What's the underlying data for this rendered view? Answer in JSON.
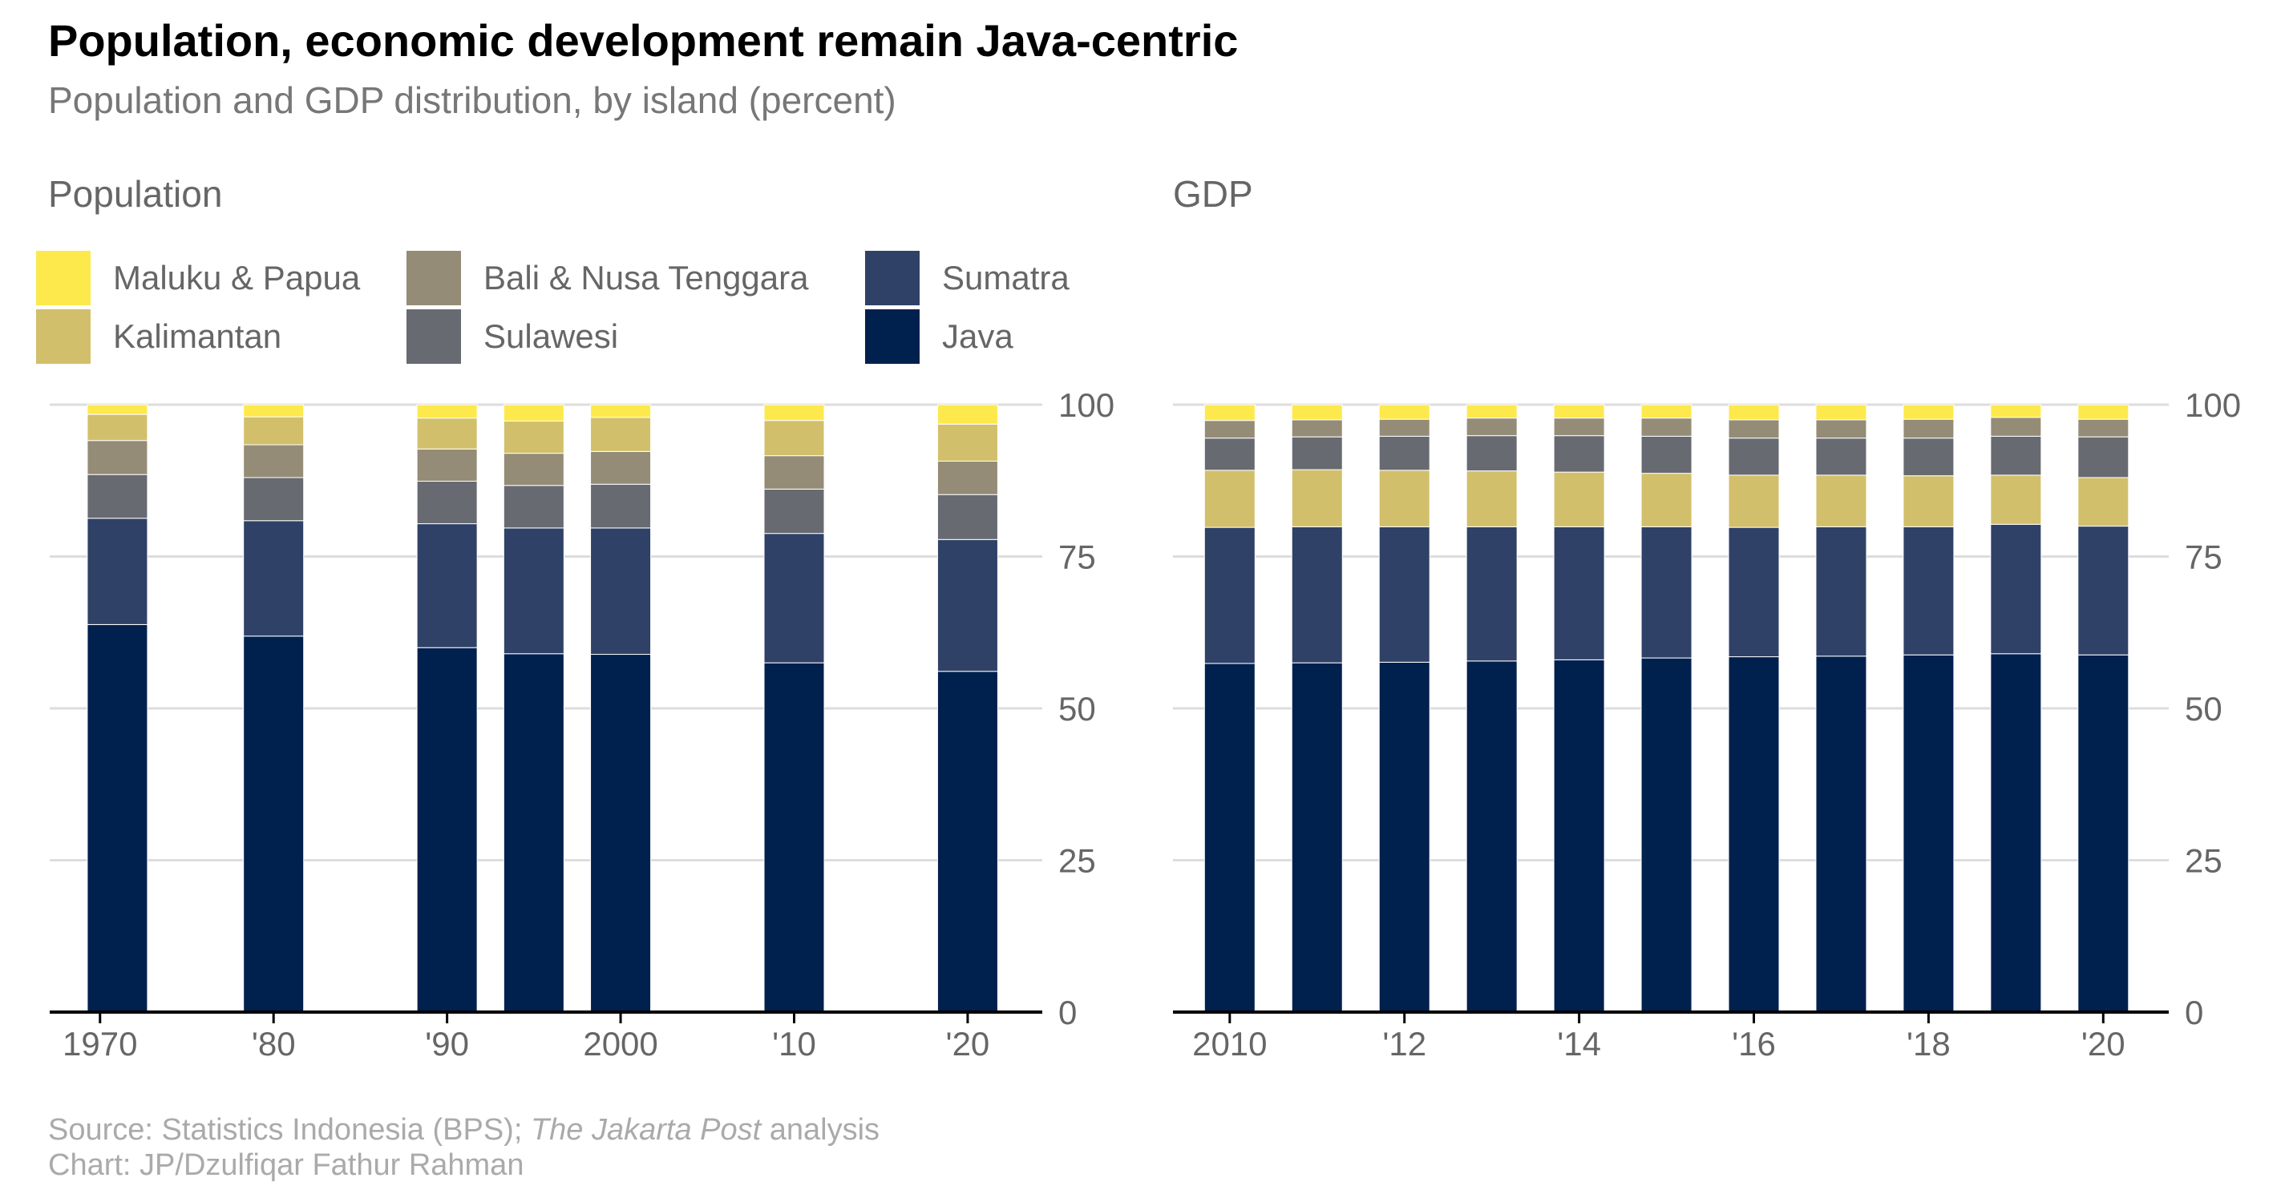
{
  "title": "Population, economic development remain Java-centric",
  "subtitle": "Population and GDP distribution, by island (percent)",
  "source": {
    "prefix": "Source: Statistics Indonesia (BPS); ",
    "italic": "The Jakarta Post",
    "suffix": " analysis",
    "line2": "Chart: JP/Dzulfiqar Fathur Rahman"
  },
  "legend": [
    {
      "name": "Maluku & Papua",
      "color": "#fde94c"
    },
    {
      "name": "Bali & Nusa Tenggara",
      "color": "#948c76"
    },
    {
      "name": "Sumatra",
      "color": "#2f4167"
    },
    {
      "name": "Kalimantan",
      "color": "#d2bf6b"
    },
    {
      "name": "Sulawesi",
      "color": "#686a72"
    },
    {
      "name": "Java",
      "color": "#00204e"
    }
  ],
  "chart_data": [
    {
      "type": "bar",
      "stacked": true,
      "title": "Population",
      "ylim": [
        0,
        100
      ],
      "yticks": [
        0,
        25,
        50,
        75,
        100
      ],
      "x": [
        1971,
        1980,
        1990,
        1995,
        2000,
        2010,
        2020
      ],
      "xticks": [
        {
          "value": 1970,
          "label": "1970"
        },
        {
          "value": 1980,
          "label": "'80"
        },
        {
          "value": 1990,
          "label": "'90"
        },
        {
          "value": 2000,
          "label": "2000"
        },
        {
          "value": 2010,
          "label": "'10"
        },
        {
          "value": 2020,
          "label": "'20"
        }
      ],
      "series": [
        {
          "name": "Java",
          "color": "#00204e",
          "values": [
            63.8,
            61.9,
            60.0,
            59.0,
            58.9,
            57.5,
            56.1
          ]
        },
        {
          "name": "Sumatra",
          "color": "#2f4167",
          "values": [
            17.5,
            19.0,
            20.4,
            20.7,
            20.8,
            21.3,
            21.7
          ]
        },
        {
          "name": "Sulawesi",
          "color": "#686a72",
          "values": [
            7.2,
            7.1,
            7.0,
            7.0,
            7.2,
            7.3,
            7.4
          ]
        },
        {
          "name": "Bali & Nusa Tenggara",
          "color": "#948c76",
          "values": [
            5.6,
            5.4,
            5.3,
            5.3,
            5.4,
            5.5,
            5.5
          ]
        },
        {
          "name": "Kalimantan",
          "color": "#d2bf6b",
          "values": [
            4.3,
            4.6,
            5.1,
            5.3,
            5.6,
            5.8,
            6.1
          ]
        },
        {
          "name": "Maluku & Papua",
          "color": "#fde94c",
          "values": [
            1.6,
            2.0,
            2.2,
            2.7,
            2.1,
            2.6,
            3.2
          ]
        }
      ]
    },
    {
      "type": "bar",
      "stacked": true,
      "title": "GDP",
      "ylim": [
        0,
        100
      ],
      "yticks": [
        0,
        25,
        50,
        75,
        100
      ],
      "x": [
        2010,
        2011,
        2012,
        2013,
        2014,
        2015,
        2016,
        2017,
        2018,
        2019,
        2020
      ],
      "xticks": [
        {
          "value": 2010,
          "label": "2010"
        },
        {
          "value": 2012,
          "label": "'12"
        },
        {
          "value": 2014,
          "label": "'14"
        },
        {
          "value": 2016,
          "label": "'16"
        },
        {
          "value": 2018,
          "label": "'18"
        },
        {
          "value": 2020,
          "label": "'20"
        }
      ],
      "series": [
        {
          "name": "Java",
          "color": "#00204e",
          "values": [
            57.4,
            57.5,
            57.6,
            57.8,
            58.0,
            58.3,
            58.5,
            58.6,
            58.8,
            59.0,
            58.8
          ]
        },
        {
          "name": "Sumatra",
          "color": "#2f4167",
          "values": [
            22.4,
            22.4,
            22.3,
            22.1,
            21.9,
            21.6,
            21.3,
            21.3,
            21.1,
            21.3,
            21.2
          ]
        },
        {
          "name": "Kalimantan",
          "color": "#d2bf6b",
          "values": [
            9.4,
            9.4,
            9.3,
            9.2,
            9.0,
            8.8,
            8.6,
            8.5,
            8.4,
            8.1,
            8.0
          ]
        },
        {
          "name": "Sulawesi",
          "color": "#686a72",
          "values": [
            5.3,
            5.4,
            5.6,
            5.8,
            6.0,
            6.1,
            6.1,
            6.1,
            6.2,
            6.4,
            6.7
          ]
        },
        {
          "name": "Bali & Nusa Tenggara",
          "color": "#948c76",
          "values": [
            2.9,
            2.8,
            2.8,
            2.9,
            2.9,
            3.0,
            3.0,
            3.0,
            3.1,
            3.1,
            2.9
          ]
        },
        {
          "name": "Maluku & Papua",
          "color": "#fde94c",
          "values": [
            2.6,
            2.5,
            2.4,
            2.2,
            2.2,
            2.2,
            2.5,
            2.5,
            2.4,
            2.1,
            2.4
          ]
        }
      ]
    }
  ]
}
